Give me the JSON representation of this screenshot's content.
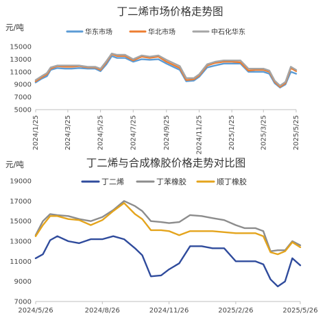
{
  "chart_data": [
    {
      "type": "line",
      "title": "丁二烯市场价格走势图",
      "ylabel": "元/吨",
      "xlabel": "",
      "ylim": [
        5000,
        15000
      ],
      "yticks": [
        5000,
        7000,
        9000,
        11000,
        13000,
        15000
      ],
      "xlim": [
        "2024-01-25",
        "2025-05-25"
      ],
      "xticks": [
        "2024/1/25",
        "2024/3/25",
        "2024/5/25",
        "2024/7/25",
        "2024/9/25",
        "2024/11/25",
        "2025/1/25",
        "2025/3/25",
        "2025/5/25"
      ],
      "grid": false,
      "legend_position": "top",
      "series": [
        {
          "name": "华东市场",
          "color": "#5b9bd5",
          "x": [
            "2024-01-25",
            "2024-02-05",
            "2024-02-15",
            "2024-02-22",
            "2024-03-05",
            "2024-03-20",
            "2024-04-01",
            "2024-04-15",
            "2024-05-01",
            "2024-05-15",
            "2024-05-25",
            "2024-06-05",
            "2024-06-15",
            "2024-06-25",
            "2024-07-10",
            "2024-07-25",
            "2024-08-10",
            "2024-08-25",
            "2024-09-10",
            "2024-09-25",
            "2024-10-10",
            "2024-10-20",
            "2024-11-01",
            "2024-11-15",
            "2024-11-25",
            "2024-12-10",
            "2024-12-25",
            "2025-01-10",
            "2025-01-25",
            "2025-02-10",
            "2025-02-25",
            "2025-03-10",
            "2025-03-25",
            "2025-04-05",
            "2025-04-15",
            "2025-04-25",
            "2025-05-05",
            "2025-05-15",
            "2025-05-25"
          ],
          "values": [
            9300,
            9900,
            10300,
            11300,
            11600,
            11500,
            11500,
            11600,
            11500,
            11500,
            11100,
            12200,
            13500,
            13200,
            13200,
            12600,
            13000,
            12900,
            13000,
            12300,
            11700,
            11300,
            9500,
            9600,
            10200,
            11700,
            12000,
            12300,
            12300,
            12300,
            11000,
            11000,
            11000,
            10700,
            9200,
            8500,
            9000,
            11000,
            10700
          ]
        },
        {
          "name": "华北市场",
          "color": "#ed7d31",
          "x": [
            "2024-01-25",
            "2024-02-05",
            "2024-02-15",
            "2024-02-22",
            "2024-03-05",
            "2024-03-20",
            "2024-04-01",
            "2024-04-15",
            "2024-05-01",
            "2024-05-15",
            "2024-05-25",
            "2024-06-05",
            "2024-06-15",
            "2024-06-25",
            "2024-07-10",
            "2024-07-25",
            "2024-08-10",
            "2024-08-25",
            "2024-09-10",
            "2024-09-25",
            "2024-10-10",
            "2024-10-20",
            "2024-11-01",
            "2024-11-15",
            "2024-11-25",
            "2024-12-10",
            "2024-12-25",
            "2025-01-10",
            "2025-01-25",
            "2025-02-10",
            "2025-02-25",
            "2025-03-10",
            "2025-03-25",
            "2025-04-05",
            "2025-04-15",
            "2025-04-25",
            "2025-05-05",
            "2025-05-15",
            "2025-05-25"
          ],
          "values": [
            9500,
            10100,
            10600,
            11500,
            11900,
            11800,
            11800,
            11900,
            11700,
            11700,
            11300,
            12500,
            13800,
            13500,
            13500,
            12800,
            13400,
            13200,
            13400,
            12600,
            12000,
            11600,
            9700,
            9800,
            10400,
            12000,
            12400,
            12600,
            12600,
            12500,
            11200,
            11300,
            11300,
            11000,
            9400,
            8600,
            9200,
            11600,
            11100
          ]
        },
        {
          "name": "中石化华东",
          "color": "#a5a5a5",
          "x": [
            "2024-01-25",
            "2024-02-05",
            "2024-02-15",
            "2024-02-22",
            "2024-03-05",
            "2024-03-20",
            "2024-04-01",
            "2024-04-15",
            "2024-05-01",
            "2024-05-15",
            "2024-05-25",
            "2024-06-05",
            "2024-06-15",
            "2024-06-25",
            "2024-07-10",
            "2024-07-25",
            "2024-08-10",
            "2024-08-25",
            "2024-09-10",
            "2024-09-25",
            "2024-10-10",
            "2024-10-20",
            "2024-11-01",
            "2024-11-15",
            "2024-11-25",
            "2024-12-10",
            "2024-12-25",
            "2025-01-10",
            "2025-01-25",
            "2025-02-10",
            "2025-02-25",
            "2025-03-10",
            "2025-03-25",
            "2025-04-05",
            "2025-04-15",
            "2025-04-25",
            "2025-05-05",
            "2025-05-15",
            "2025-05-25"
          ],
          "values": [
            9700,
            10300,
            10800,
            11700,
            12000,
            12000,
            12000,
            12000,
            11800,
            11800,
            11500,
            12700,
            13900,
            13700,
            13700,
            13000,
            13600,
            13400,
            13600,
            12900,
            12300,
            11900,
            10000,
            10000,
            10600,
            12200,
            12600,
            12800,
            12800,
            12800,
            11500,
            11500,
            11500,
            11200,
            9600,
            8800,
            9400,
            11800,
            11300
          ]
        }
      ]
    },
    {
      "type": "line",
      "title": "丁二烯与合成橡胶价格走势对比图",
      "ylabel": "元/吨",
      "xlabel": "",
      "ylim": [
        7000,
        19000
      ],
      "yticks": [
        7000,
        9000,
        11000,
        13000,
        15000,
        17000,
        19000
      ],
      "xlim": [
        "2024-05-26",
        "2025-05-26"
      ],
      "xticks": [
        "2024/5/26",
        "2024/8/26",
        "2024/11/26",
        "2025/2/26",
        "2025/5/26"
      ],
      "grid": false,
      "legend_position": "top",
      "series": [
        {
          "name": "丁二烯",
          "color": "#2f4b9c",
          "x": [
            "2024-05-26",
            "2024-06-05",
            "2024-06-15",
            "2024-06-25",
            "2024-07-10",
            "2024-07-25",
            "2024-08-10",
            "2024-08-26",
            "2024-09-10",
            "2024-09-25",
            "2024-10-10",
            "2024-10-20",
            "2024-11-01",
            "2024-11-15",
            "2024-11-26",
            "2024-12-10",
            "2024-12-25",
            "2025-01-10",
            "2025-01-25",
            "2025-02-10",
            "2025-02-26",
            "2025-03-10",
            "2025-03-25",
            "2025-04-05",
            "2025-04-15",
            "2025-04-25",
            "2025-05-05",
            "2025-05-15",
            "2025-05-26"
          ],
          "values": [
            11300,
            11700,
            13100,
            13500,
            13000,
            12800,
            13200,
            13200,
            13500,
            13200,
            12300,
            11600,
            9500,
            9600,
            10200,
            10800,
            12500,
            12500,
            12300,
            12300,
            11000,
            11000,
            11000,
            10700,
            9200,
            8500,
            9000,
            11300,
            10600
          ]
        },
        {
          "name": "丁苯橡胶",
          "color": "#8c8c8c",
          "x": [
            "2024-05-26",
            "2024-06-05",
            "2024-06-15",
            "2024-06-25",
            "2024-07-10",
            "2024-07-25",
            "2024-08-10",
            "2024-08-26",
            "2024-09-10",
            "2024-09-25",
            "2024-10-10",
            "2024-10-20",
            "2024-11-01",
            "2024-11-15",
            "2024-11-26",
            "2024-12-10",
            "2024-12-25",
            "2025-01-10",
            "2025-01-25",
            "2025-02-10",
            "2025-02-26",
            "2025-03-10",
            "2025-03-25",
            "2025-04-05",
            "2025-04-15",
            "2025-04-25",
            "2025-05-05",
            "2025-05-15",
            "2025-05-26"
          ],
          "values": [
            13600,
            15000,
            15700,
            15600,
            15500,
            15200,
            15000,
            15400,
            16100,
            17000,
            16500,
            16000,
            15000,
            14900,
            14800,
            14900,
            15600,
            15500,
            15300,
            15100,
            14600,
            14300,
            14300,
            14000,
            12000,
            12100,
            12100,
            13000,
            12600
          ]
        },
        {
          "name": "顺丁橡胶",
          "color": "#e4a41c",
          "x": [
            "2024-05-26",
            "2024-06-05",
            "2024-06-15",
            "2024-06-25",
            "2024-07-10",
            "2024-07-25",
            "2024-08-10",
            "2024-08-26",
            "2024-09-10",
            "2024-09-25",
            "2024-10-10",
            "2024-10-20",
            "2024-11-01",
            "2024-11-15",
            "2024-11-26",
            "2024-12-10",
            "2024-12-25",
            "2025-01-10",
            "2025-01-25",
            "2025-02-10",
            "2025-02-26",
            "2025-03-10",
            "2025-03-25",
            "2025-04-05",
            "2025-04-15",
            "2025-04-25",
            "2025-05-05",
            "2025-05-15",
            "2025-05-26"
          ],
          "values": [
            13500,
            14600,
            15500,
            15500,
            15200,
            15100,
            14600,
            15100,
            16000,
            16800,
            15700,
            15200,
            14100,
            14100,
            14000,
            13600,
            14000,
            14000,
            14000,
            13900,
            13800,
            13800,
            13800,
            13500,
            11900,
            11700,
            12000,
            12900,
            12400
          ]
        }
      ]
    }
  ]
}
